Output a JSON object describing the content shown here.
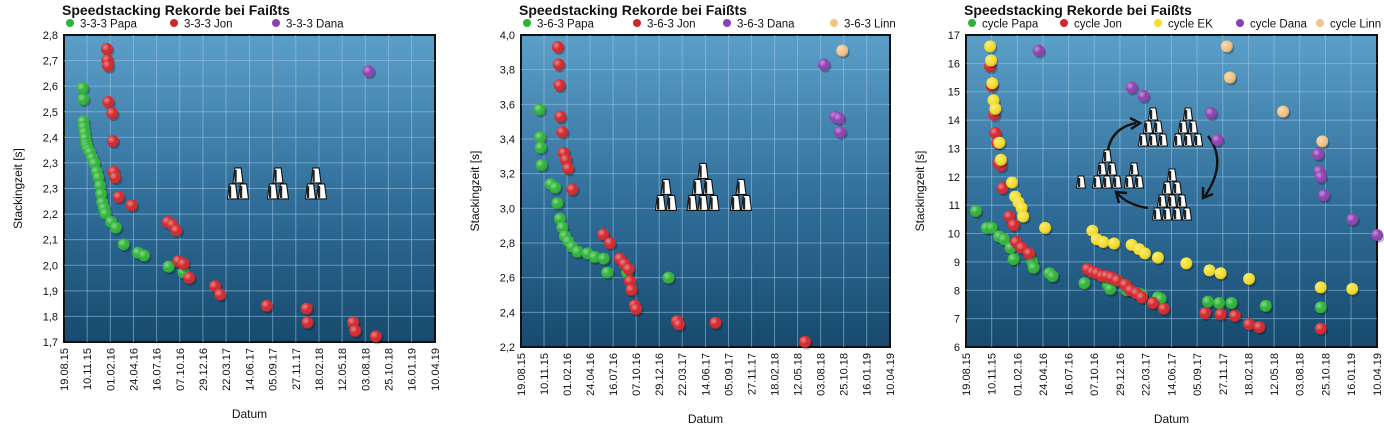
{
  "chart_data": [
    {
      "type": "scatter",
      "title": "Speedstacking Rekorde bei Faißts",
      "xlabel": "Datum",
      "ylabel": "Stackingzeit [s]",
      "xticks": [
        "19.08.15",
        "10.11.15",
        "01.02.16",
        "24.04.16",
        "16.07.16",
        "07.10.16",
        "29.12.16",
        "22.03.17",
        "14.06.17",
        "05.09.17",
        "27.11.17",
        "18.02.18",
        "12.05.18",
        "03.08.18",
        "25.10.18",
        "16.01.19",
        "10.04.19"
      ],
      "yticks": [
        "1,7",
        "1,8",
        "1,9",
        "2,0",
        "2,1",
        "2,2",
        "2,3",
        "2,3",
        "2,4",
        "2,5",
        "2,6",
        "2,7",
        "2,8"
      ],
      "ylim": [
        1.7,
        2.8
      ],
      "legend": "top",
      "grid": true,
      "series": [
        {
          "name": "3-3-3 Papa",
          "color": "#2db336",
          "points": [
            [
              "2015-10-25",
              2.61
            ],
            [
              "2015-10-27",
              2.57
            ],
            [
              "2015-10-27",
              2.49
            ],
            [
              "2015-10-29",
              2.47
            ],
            [
              "2015-11-01",
              2.45
            ],
            [
              "2015-11-04",
              2.43
            ],
            [
              "2015-11-07",
              2.41
            ],
            [
              "2015-11-10",
              2.4
            ],
            [
              "2015-11-14",
              2.39
            ],
            [
              "2015-11-20",
              2.38
            ],
            [
              "2015-11-28",
              2.36
            ],
            [
              "2015-12-06",
              2.34
            ],
            [
              "2015-12-14",
              2.31
            ],
            [
              "2015-12-20",
              2.29
            ],
            [
              "2015-12-26",
              2.26
            ],
            [
              "2015-12-30",
              2.23
            ],
            [
              "2016-01-03",
              2.2
            ],
            [
              "2016-01-09",
              2.18
            ],
            [
              "2016-01-15",
              2.16
            ],
            [
              "2016-02-04",
              2.13
            ],
            [
              "2016-02-21",
              2.11
            ],
            [
              "2016-03-20",
              2.05
            ],
            [
              "2016-05-10",
              2.02
            ],
            [
              "2016-06-01",
              2.01
            ],
            [
              "2016-08-28",
              1.97
            ],
            [
              "2016-10-20",
              1.95
            ]
          ]
        },
        {
          "name": "3-3-3 Jon",
          "color": "#d2262b",
          "points": [
            [
              "2016-01-20",
              2.75
            ],
            [
              "2016-01-22",
              2.71
            ],
            [
              "2016-01-24",
              2.69
            ],
            [
              "2016-01-25",
              2.56
            ],
            [
              "2016-02-08",
              2.52
            ],
            [
              "2016-02-10",
              2.42
            ],
            [
              "2016-02-13",
              2.31
            ],
            [
              "2016-02-18",
              2.29
            ],
            [
              "2016-03-02",
              2.22
            ],
            [
              "2016-04-18",
              2.19
            ],
            [
              "2016-08-25",
              2.13
            ],
            [
              "2016-09-10",
              2.12
            ],
            [
              "2016-09-25",
              2.1
            ],
            [
              "2016-10-02",
              1.99
            ],
            [
              "2016-10-20",
              1.98
            ],
            [
              "2016-11-10",
              1.93
            ],
            [
              "2017-02-10",
              1.9
            ],
            [
              "2017-03-01",
              1.87
            ],
            [
              "2017-08-15",
              1.83
            ],
            [
              "2018-01-05",
              1.82
            ],
            [
              "2018-01-08",
              1.77
            ],
            [
              "2018-06-20",
              1.77
            ],
            [
              "2018-06-28",
              1.74
            ],
            [
              "2018-09-10",
              1.72
            ]
          ]
        },
        {
          "name": "3-3-3 Dana",
          "color": "#8e3fb1",
          "points": [
            [
              "2018-08-15",
              2.67
            ]
          ]
        }
      ]
    },
    {
      "type": "scatter",
      "title": "Speedstacking Rekorde bei Faißts",
      "xlabel": "Datum",
      "ylabel": "Stackingzeit [s]",
      "xticks": [
        "19.08.15",
        "10.11.15",
        "01.02.16",
        "24.04.16",
        "16.07.16",
        "07.10.16",
        "29.12.16",
        "22.03.17",
        "14.06.17",
        "05.09.17",
        "27.11.17",
        "18.02.18",
        "12.05.18",
        "03.08.18",
        "25.10.18",
        "16.01.19",
        "10.04.19"
      ],
      "yticks": [
        "2,2",
        "2,4",
        "2,6",
        "2,8",
        "3,0",
        "3,2",
        "3,4",
        "3,6",
        "3,8",
        "4,0"
      ],
      "ylim": [
        2.2,
        4.0
      ],
      "legend": "top",
      "grid": true,
      "series": [
        {
          "name": "3-6-3 Papa",
          "color": "#2db336",
          "points": [
            [
              "2015-10-25",
              3.57
            ],
            [
              "2015-10-27",
              3.41
            ],
            [
              "2015-10-29",
              3.35
            ],
            [
              "2015-11-01",
              3.25
            ],
            [
              "2015-12-04",
              3.14
            ],
            [
              "2015-12-20",
              3.12
            ],
            [
              "2015-12-28",
              3.03
            ],
            [
              "2016-01-06",
              2.94
            ],
            [
              "2016-01-15",
              2.89
            ],
            [
              "2016-01-24",
              2.84
            ],
            [
              "2016-02-05",
              2.81
            ],
            [
              "2016-02-18",
              2.78
            ],
            [
              "2016-03-10",
              2.75
            ],
            [
              "2016-04-15",
              2.74
            ],
            [
              "2016-05-10",
              2.72
            ],
            [
              "2016-06-12",
              2.71
            ],
            [
              "2016-06-25",
              2.63
            ],
            [
              "2016-09-05",
              2.63
            ],
            [
              "2017-02-01",
              2.6
            ]
          ]
        },
        {
          "name": "3-6-3 Jon",
          "color": "#d2262b",
          "points": [
            [
              "2015-12-30",
              3.93
            ],
            [
              "2016-01-02",
              3.83
            ],
            [
              "2016-01-05",
              3.71
            ],
            [
              "2016-01-08",
              3.53
            ],
            [
              "2016-01-15",
              3.44
            ],
            [
              "2016-01-20",
              3.32
            ],
            [
              "2016-01-28",
              3.28
            ],
            [
              "2016-02-05",
              3.23
            ],
            [
              "2016-02-20",
              3.11
            ],
            [
              "2016-06-10",
              2.85
            ],
            [
              "2016-07-05",
              2.8
            ],
            [
              "2016-08-10",
              2.71
            ],
            [
              "2016-08-25",
              2.68
            ],
            [
              "2016-09-10",
              2.65
            ],
            [
              "2016-09-15",
              2.58
            ],
            [
              "2016-09-20",
              2.53
            ],
            [
              "2016-10-02",
              2.44
            ],
            [
              "2016-10-07",
              2.42
            ],
            [
              "2017-03-03",
              2.35
            ],
            [
              "2017-03-10",
              2.33
            ],
            [
              "2017-07-20",
              2.34
            ],
            [
              "2018-06-08",
              2.23
            ]
          ]
        },
        {
          "name": "3-6-3 Dana",
          "color": "#8e3fb1",
          "points": [
            [
              "2018-08-15",
              3.83
            ],
            [
              "2018-09-25",
              3.53
            ],
            [
              "2018-10-08",
              3.52
            ],
            [
              "2018-10-12",
              3.44
            ]
          ]
        },
        {
          "name": "3-6-3 Linn",
          "color": "#f4c284",
          "points": [
            [
              "2018-10-20",
              3.91
            ]
          ]
        }
      ]
    },
    {
      "type": "scatter",
      "title": "Speedstacking Rekorde bei Faißts",
      "xlabel": "Datum",
      "ylabel": "Stackingzeit [s]",
      "xticks": [
        "19.08.15",
        "10.11.15",
        "01.02.16",
        "24.04.16",
        "16.07.16",
        "07.10.16",
        "29.12.16",
        "22.03.17",
        "14.06.17",
        "05.09.17",
        "27.11.17",
        "18.02.18",
        "12.05.18",
        "03.08.18",
        "25.10.18",
        "16.01.19",
        "10.04.19"
      ],
      "yticks": [
        "6",
        "7",
        "8",
        "9",
        "10",
        "11",
        "12",
        "13",
        "14",
        "15",
        "16",
        "17"
      ],
      "ylim": [
        6,
        17
      ],
      "legend": "top",
      "grid": true,
      "series": [
        {
          "name": "cycle Papa",
          "color": "#2db336",
          "points": [
            [
              "2015-09-20",
              10.8
            ],
            [
              "2015-10-25",
              10.2
            ],
            [
              "2015-11-10",
              10.2
            ],
            [
              "2015-12-04",
              9.9
            ],
            [
              "2015-12-20",
              9.8
            ],
            [
              "2016-01-10",
              9.5
            ],
            [
              "2016-01-20",
              9.1
            ],
            [
              "2016-03-20",
              9.0
            ],
            [
              "2016-03-25",
              8.8
            ],
            [
              "2016-05-15",
              8.6
            ],
            [
              "2016-05-25",
              8.5
            ],
            [
              "2016-09-05",
              8.25
            ],
            [
              "2016-11-20",
              8.2
            ],
            [
              "2016-11-28",
              8.05
            ],
            [
              "2017-01-20",
              8.0
            ],
            [
              "2017-02-25",
              7.9
            ],
            [
              "2017-03-10",
              7.85
            ],
            [
              "2017-05-01",
              7.75
            ],
            [
              "2017-05-10",
              7.7
            ],
            [
              "2017-10-10",
              7.6
            ],
            [
              "2017-11-15",
              7.55
            ],
            [
              "2017-12-25",
              7.55
            ],
            [
              "2018-04-15",
              7.45
            ],
            [
              "2018-10-10",
              7.4
            ]
          ]
        },
        {
          "name": "cycle Jon",
          "color": "#d2262b",
          "points": [
            [
              "2015-11-05",
              15.9
            ],
            [
              "2015-11-10",
              15.2
            ],
            [
              "2015-11-18",
              14.2
            ],
            [
              "2015-11-22",
              13.55
            ],
            [
              "2015-11-28",
              13.2
            ],
            [
              "2015-12-02",
              12.5
            ],
            [
              "2015-12-10",
              12.4
            ],
            [
              "2015-12-15",
              11.6
            ],
            [
              "2016-01-06",
              10.6
            ],
            [
              "2016-01-20",
              10.3
            ],
            [
              "2016-01-28",
              9.7
            ],
            [
              "2016-02-15",
              9.5
            ],
            [
              "2016-03-10",
              9.3
            ],
            [
              "2016-09-15",
              8.75
            ],
            [
              "2016-10-01",
              8.65
            ],
            [
              "2016-10-15",
              8.6
            ],
            [
              "2016-11-01",
              8.5
            ],
            [
              "2016-11-15",
              8.5
            ],
            [
              "2016-12-01",
              8.45
            ],
            [
              "2016-12-20",
              8.35
            ],
            [
              "2017-01-15",
              8.2
            ],
            [
              "2017-02-01",
              8.0
            ],
            [
              "2017-02-20",
              7.9
            ],
            [
              "2017-03-10",
              7.75
            ],
            [
              "2017-04-15",
              7.55
            ],
            [
              "2017-05-20",
              7.35
            ],
            [
              "2017-10-01",
              7.2
            ],
            [
              "2017-11-20",
              7.15
            ],
            [
              "2018-01-05",
              7.1
            ],
            [
              "2018-02-20",
              6.8
            ],
            [
              "2018-03-25",
              6.7
            ],
            [
              "2018-10-10",
              6.65
            ]
          ]
        },
        {
          "name": "cycle EK",
          "color": "#f5de2c",
          "points": [
            [
              "2015-11-05",
              16.6
            ],
            [
              "2015-11-08",
              16.1
            ],
            [
              "2015-11-12",
              15.3
            ],
            [
              "2015-11-16",
              14.7
            ],
            [
              "2015-11-22",
              14.4
            ],
            [
              "2015-12-05",
              13.2
            ],
            [
              "2015-12-10",
              12.6
            ],
            [
              "2016-01-15",
              11.8
            ],
            [
              "2016-01-25",
              11.3
            ],
            [
              "2016-02-05",
              11.1
            ],
            [
              "2016-02-15",
              10.9
            ],
            [
              "2016-02-20",
              10.6
            ],
            [
              "2016-05-01",
              10.2
            ],
            [
              "2016-10-01",
              10.1
            ],
            [
              "2016-10-15",
              9.8
            ],
            [
              "2016-11-05",
              9.7
            ],
            [
              "2016-12-10",
              9.65
            ],
            [
              "2017-02-05",
              9.6
            ],
            [
              "2017-03-01",
              9.45
            ],
            [
              "2017-03-20",
              9.3
            ],
            [
              "2017-05-01",
              9.15
            ],
            [
              "2017-08-01",
              8.95
            ],
            [
              "2017-10-15",
              8.7
            ],
            [
              "2017-11-20",
              8.6
            ],
            [
              "2018-02-20",
              8.4
            ],
            [
              "2018-10-10",
              8.1
            ],
            [
              "2019-01-20",
              8.05
            ]
          ]
        },
        {
          "name": "cycle Dana",
          "color": "#8e3fb1",
          "points": [
            [
              "2016-04-10",
              16.45
            ],
            [
              "2017-02-05",
              15.15
            ],
            [
              "2017-03-15",
              14.85
            ],
            [
              "2017-10-20",
              14.25
            ],
            [
              "2017-11-10",
              13.3
            ],
            [
              "2018-10-01",
              12.8
            ],
            [
              "2018-10-05",
              12.2
            ],
            [
              "2018-10-10",
              12.0
            ],
            [
              "2018-10-20",
              11.35
            ],
            [
              "2019-01-20",
              10.5
            ],
            [
              "2019-04-10",
              9.95
            ]
          ]
        },
        {
          "name": "cycle Linn",
          "color": "#f4c284",
          "points": [
            [
              "2017-12-10",
              16.6
            ],
            [
              "2017-12-20",
              15.5
            ],
            [
              "2018-06-10",
              14.3
            ],
            [
              "2018-10-15",
              13.25
            ]
          ]
        }
      ]
    }
  ]
}
